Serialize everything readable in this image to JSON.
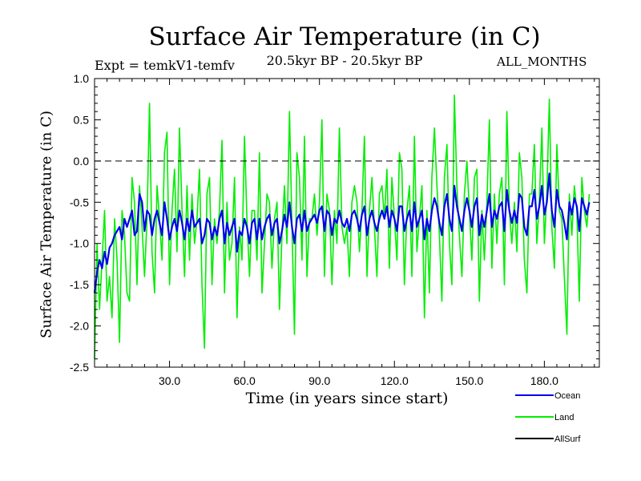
{
  "chart_data": {
    "type": "line",
    "title": "Surface Air Temperature (in C)",
    "subtitle": "20.5kyr BP - 20.5kyr BP",
    "experiment_label": "Expt = temkV1-temfv",
    "months_label": "ALL_MONTHS",
    "xlabel": "Time (in years since start)",
    "ylabel": "Surface Air Temperature (in C)",
    "xlim": [
      0,
      202
    ],
    "ylim": [
      -2.5,
      1.0
    ],
    "x_ticks": [
      30,
      60,
      90,
      120,
      150,
      180
    ],
    "x_tick_labels": [
      "30.0",
      "60.0",
      "90.0",
      "120.0",
      "150.0",
      "180.0"
    ],
    "y_ticks": [
      1.0,
      0.5,
      0.0,
      -0.5,
      -1.0,
      -1.5,
      -2.0,
      -2.5
    ],
    "y_tick_labels": [
      "1.0",
      "0.5",
      "0.0",
      "-0.5",
      "-1.0",
      "-1.5",
      "-2.0",
      "-2.5"
    ],
    "reference_line": 0.0,
    "series": [
      {
        "name": "Land",
        "color": "#00ee00",
        "x_start": 0,
        "x_step": 1,
        "values": [
          -2.4,
          -1.0,
          -1.8,
          -1.2,
          -0.6,
          -1.7,
          -1.4,
          -1.9,
          -0.7,
          -1.2,
          -2.2,
          -0.6,
          -0.9,
          -1.6,
          -1.7,
          -0.2,
          -0.5,
          -1.5,
          -0.3,
          -0.8,
          -1.4,
          -0.7,
          0.7,
          -1.1,
          -1.6,
          -0.3,
          -0.7,
          -1.2,
          0.1,
          0.35,
          -1.5,
          -0.6,
          -0.1,
          -1.1,
          0.4,
          -0.6,
          -1.4,
          -0.3,
          -1.2,
          -0.4,
          -1.0,
          -0.7,
          -0.1,
          -1.5,
          -2.27,
          -0.4,
          -0.2,
          -1.5,
          -0.7,
          -1.0,
          -0.6,
          0.25,
          -1.6,
          -0.5,
          -1.2,
          -1.0,
          -0.2,
          -1.9,
          -0.8,
          -1.2,
          0.3,
          -0.7,
          -1.4,
          -0.6,
          -0.6,
          -1.2,
          0.1,
          -1.6,
          -1.0,
          -0.4,
          -0.5,
          -1.3,
          -0.7,
          -0.5,
          -1.8,
          -0.9,
          -0.3,
          -1.0,
          0.6,
          -0.8,
          -2.1,
          0.1,
          -0.2,
          -1.2,
          0.3,
          -1.4,
          -0.7,
          -0.7,
          -0.4,
          -0.9,
          -0.5,
          0.5,
          -1.4,
          -0.4,
          -0.6,
          -1.5,
          -0.6,
          -1.0,
          0.4,
          -0.8,
          -1.0,
          -0.8,
          -1.4,
          -0.5,
          -0.3,
          -0.5,
          -1.1,
          -0.6,
          0.3,
          -1.4,
          -0.6,
          -0.2,
          -0.8,
          -1.4,
          -0.4,
          -0.3,
          -0.7,
          -0.1,
          -1.3,
          -0.2,
          -0.7,
          -1.2,
          0.1,
          -0.1,
          -1.5,
          -0.6,
          -0.3,
          -1.4,
          0.3,
          -1.1,
          -0.7,
          -0.3,
          -1.9,
          -0.6,
          -1.6,
          -0.2,
          0.4,
          -0.3,
          -0.9,
          -1.7,
          -0.2,
          0.2,
          -1.0,
          -1.5,
          0.8,
          -0.3,
          -0.9,
          -1.4,
          -0.4,
          0.0,
          -0.6,
          -1.2,
          -0.2,
          -0.1,
          -1.7,
          -0.6,
          -1.2,
          -0.5,
          0.5,
          -1.3,
          -0.4,
          -1.0,
          -0.4,
          -0.2,
          -1.5,
          0.6,
          -0.6,
          -1.0,
          -0.5,
          -1.1,
          0.1,
          -0.2,
          -1.2,
          -1.6,
          -0.4,
          -0.4,
          0.2,
          -1.0,
          -0.5,
          0.4,
          -1.0,
          -0.4,
          0.75,
          -0.8,
          -1.3,
          0.2,
          -0.6,
          -0.7,
          -1.4,
          -2.1,
          -0.4,
          -0.9,
          -0.3,
          -0.6,
          -1.7,
          -0.2,
          -0.6,
          -0.8,
          -0.4
        ]
      },
      {
        "name": "Ocean",
        "color": "#0000ee",
        "x_start": 0,
        "x_step": 1,
        "values": [
          -1.6,
          -1.35,
          -1.2,
          -1.3,
          -1.1,
          -1.25,
          -1.05,
          -1.0,
          -0.9,
          -0.85,
          -0.8,
          -0.95,
          -0.7,
          -0.8,
          -0.7,
          -0.6,
          -0.9,
          -0.85,
          -0.4,
          -0.5,
          -0.85,
          -0.6,
          -0.65,
          -0.9,
          -0.7,
          -0.6,
          -0.75,
          -0.9,
          -0.5,
          -0.7,
          -0.95,
          -0.8,
          -0.7,
          -0.85,
          -0.6,
          -0.75,
          -0.95,
          -0.7,
          -0.85,
          -0.6,
          -0.8,
          -0.75,
          -0.7,
          -1.0,
          -0.9,
          -0.7,
          -0.75,
          -0.95,
          -0.8,
          -0.9,
          -0.7,
          -0.6,
          -1.0,
          -0.75,
          -0.9,
          -0.8,
          -0.7,
          -1.1,
          -0.85,
          -0.9,
          -0.7,
          -0.8,
          -1.0,
          -0.75,
          -0.7,
          -0.95,
          -0.7,
          -0.95,
          -0.8,
          -0.7,
          -0.65,
          -0.9,
          -0.75,
          -0.7,
          -1.0,
          -0.85,
          -0.65,
          -0.8,
          -0.5,
          -0.8,
          -1.0,
          -0.7,
          -0.65,
          -0.85,
          -0.6,
          -0.85,
          -0.75,
          -0.7,
          -0.65,
          -0.75,
          -0.6,
          -0.55,
          -0.85,
          -0.6,
          -0.65,
          -0.9,
          -0.7,
          -0.75,
          -0.6,
          -0.75,
          -0.8,
          -0.7,
          -0.85,
          -0.65,
          -0.6,
          -0.7,
          -0.85,
          -0.65,
          -0.55,
          -0.9,
          -0.7,
          -0.6,
          -0.75,
          -0.85,
          -0.7,
          -0.6,
          -0.7,
          -0.55,
          -0.8,
          -0.6,
          -0.7,
          -0.85,
          -0.55,
          -0.55,
          -0.85,
          -0.7,
          -0.6,
          -0.85,
          -0.5,
          -0.8,
          -0.7,
          -0.6,
          -0.95,
          -0.7,
          -0.85,
          -0.6,
          -0.45,
          -0.55,
          -0.75,
          -0.9,
          -0.55,
          -0.4,
          -0.7,
          -0.85,
          -0.3,
          -0.55,
          -0.7,
          -0.85,
          -0.6,
          -0.45,
          -0.6,
          -0.8,
          -0.55,
          -0.45,
          -0.9,
          -0.65,
          -0.8,
          -0.6,
          -0.4,
          -0.8,
          -0.6,
          -0.7,
          -0.55,
          -0.5,
          -0.85,
          -0.35,
          -0.6,
          -0.75,
          -0.6,
          -0.75,
          -0.4,
          -0.45,
          -0.8,
          -0.9,
          -0.55,
          -0.55,
          -0.35,
          -0.7,
          -0.55,
          -0.3,
          -0.65,
          -0.5,
          -0.15,
          -0.6,
          -0.8,
          -0.35,
          -0.55,
          -0.6,
          -0.75,
          -0.95,
          -0.5,
          -0.65,
          -0.45,
          -0.55,
          -0.85,
          -0.45,
          -0.55,
          -0.65,
          -0.5
        ]
      },
      {
        "name": "AllSurf",
        "color": "#000000",
        "values": []
      }
    ],
    "legend_position": "bottom-right"
  }
}
